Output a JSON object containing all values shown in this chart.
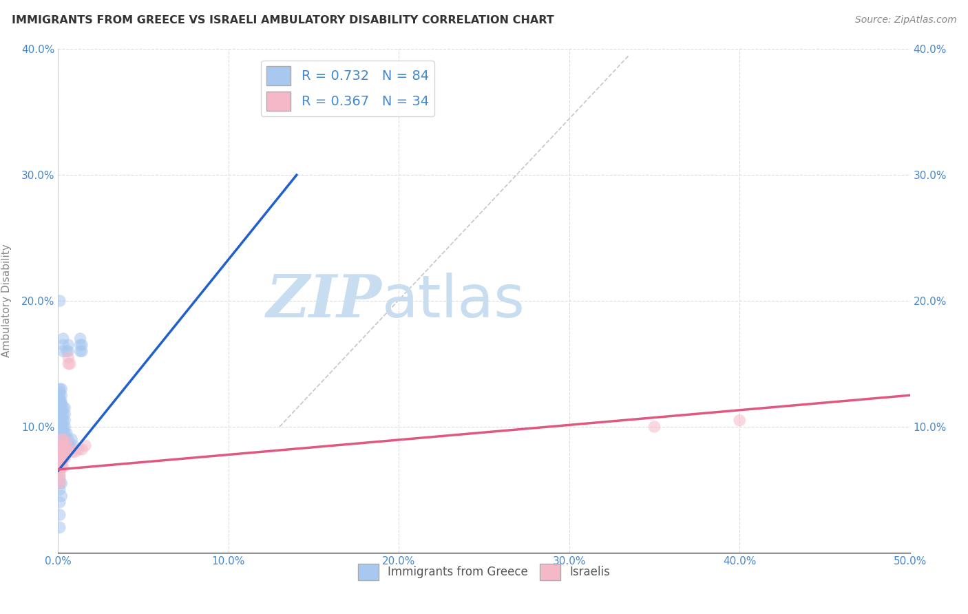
{
  "title": "IMMIGRANTS FROM GREECE VS ISRAELI AMBULATORY DISABILITY CORRELATION CHART",
  "source": "Source: ZipAtlas.com",
  "ylabel": "Ambulatory Disability",
  "xlim": [
    0,
    0.5
  ],
  "ylim": [
    0,
    0.4
  ],
  "xticks": [
    0.0,
    0.1,
    0.2,
    0.3,
    0.4,
    0.5
  ],
  "yticks": [
    0.0,
    0.1,
    0.2,
    0.3,
    0.4
  ],
  "xticklabels": [
    "0.0%",
    "10.0%",
    "20.0%",
    "30.0%",
    "40.0%",
    "50.0%"
  ],
  "yticklabels": [
    "",
    "10.0%",
    "20.0%",
    "30.0%",
    "40.0%"
  ],
  "background_color": "#ffffff",
  "grid_color": "#d8d8d8",
  "legend_R1": "R = 0.732",
  "legend_N1": "N = 84",
  "legend_R2": "R = 0.367",
  "legend_N2": "N = 34",
  "series1_color": "#a8c8f0",
  "series2_color": "#f5b8c8",
  "line1_color": "#2060cc",
  "line2_color": "#e05880",
  "watermark_zip": "ZIP",
  "watermark_atlas": "atlas",
  "watermark_color_zip": "#c8ddf0",
  "watermark_color_atlas": "#c8ddf0",
  "title_color": "#333333",
  "axis_label_color": "#4488cc",
  "series1_label": "Immigrants from Greece",
  "series2_label": "Israelis",
  "blue_dots": [
    [
      0.001,
      0.078
    ],
    [
      0.001,
      0.082
    ],
    [
      0.001,
      0.088
    ],
    [
      0.001,
      0.09
    ],
    [
      0.001,
      0.092
    ],
    [
      0.001,
      0.095
    ],
    [
      0.001,
      0.097
    ],
    [
      0.001,
      0.099
    ],
    [
      0.001,
      0.1
    ],
    [
      0.001,
      0.102
    ],
    [
      0.001,
      0.103
    ],
    [
      0.001,
      0.105
    ],
    [
      0.001,
      0.107
    ],
    [
      0.001,
      0.108
    ],
    [
      0.001,
      0.11
    ],
    [
      0.001,
      0.112
    ],
    [
      0.001,
      0.115
    ],
    [
      0.001,
      0.118
    ],
    [
      0.001,
      0.12
    ],
    [
      0.001,
      0.122
    ],
    [
      0.001,
      0.125
    ],
    [
      0.001,
      0.128
    ],
    [
      0.001,
      0.13
    ],
    [
      0.001,
      0.05
    ],
    [
      0.002,
      0.075
    ],
    [
      0.002,
      0.08
    ],
    [
      0.002,
      0.085
    ],
    [
      0.002,
      0.09
    ],
    [
      0.002,
      0.092
    ],
    [
      0.002,
      0.095
    ],
    [
      0.002,
      0.098
    ],
    [
      0.002,
      0.1
    ],
    [
      0.002,
      0.105
    ],
    [
      0.002,
      0.108
    ],
    [
      0.002,
      0.112
    ],
    [
      0.002,
      0.115
    ],
    [
      0.002,
      0.118
    ],
    [
      0.002,
      0.12
    ],
    [
      0.002,
      0.125
    ],
    [
      0.002,
      0.13
    ],
    [
      0.003,
      0.075
    ],
    [
      0.003,
      0.08
    ],
    [
      0.003,
      0.085
    ],
    [
      0.003,
      0.09
    ],
    [
      0.003,
      0.095
    ],
    [
      0.003,
      0.1
    ],
    [
      0.003,
      0.105
    ],
    [
      0.003,
      0.11
    ],
    [
      0.003,
      0.115
    ],
    [
      0.003,
      0.16
    ],
    [
      0.003,
      0.165
    ],
    [
      0.003,
      0.17
    ],
    [
      0.004,
      0.08
    ],
    [
      0.004,
      0.085
    ],
    [
      0.004,
      0.09
    ],
    [
      0.004,
      0.095
    ],
    [
      0.004,
      0.1
    ],
    [
      0.004,
      0.105
    ],
    [
      0.004,
      0.11
    ],
    [
      0.004,
      0.115
    ],
    [
      0.005,
      0.085
    ],
    [
      0.005,
      0.09
    ],
    [
      0.005,
      0.095
    ],
    [
      0.005,
      0.16
    ],
    [
      0.006,
      0.085
    ],
    [
      0.006,
      0.09
    ],
    [
      0.006,
      0.16
    ],
    [
      0.006,
      0.165
    ],
    [
      0.007,
      0.085
    ],
    [
      0.008,
      0.09
    ],
    [
      0.009,
      0.085
    ],
    [
      0.013,
      0.16
    ],
    [
      0.013,
      0.165
    ],
    [
      0.013,
      0.17
    ],
    [
      0.014,
      0.16
    ],
    [
      0.014,
      0.165
    ],
    [
      0.001,
      0.06
    ],
    [
      0.001,
      0.055
    ],
    [
      0.001,
      0.04
    ],
    [
      0.002,
      0.055
    ],
    [
      0.002,
      0.045
    ],
    [
      0.001,
      0.2
    ],
    [
      0.001,
      0.03
    ],
    [
      0.001,
      0.02
    ]
  ],
  "pink_dots": [
    [
      0.001,
      0.055
    ],
    [
      0.001,
      0.058
    ],
    [
      0.001,
      0.062
    ],
    [
      0.001,
      0.065
    ],
    [
      0.001,
      0.068
    ],
    [
      0.001,
      0.072
    ],
    [
      0.001,
      0.075
    ],
    [
      0.001,
      0.078
    ],
    [
      0.001,
      0.08
    ],
    [
      0.002,
      0.068
    ],
    [
      0.002,
      0.072
    ],
    [
      0.002,
      0.078
    ],
    [
      0.002,
      0.085
    ],
    [
      0.002,
      0.09
    ],
    [
      0.003,
      0.068
    ],
    [
      0.003,
      0.075
    ],
    [
      0.003,
      0.08
    ],
    [
      0.003,
      0.085
    ],
    [
      0.003,
      0.09
    ],
    [
      0.004,
      0.075
    ],
    [
      0.004,
      0.08
    ],
    [
      0.004,
      0.085
    ],
    [
      0.005,
      0.082
    ],
    [
      0.005,
      0.088
    ],
    [
      0.006,
      0.15
    ],
    [
      0.006,
      0.155
    ],
    [
      0.007,
      0.15
    ],
    [
      0.008,
      0.08
    ],
    [
      0.01,
      0.08
    ],
    [
      0.012,
      0.082
    ],
    [
      0.014,
      0.082
    ],
    [
      0.016,
      0.085
    ],
    [
      0.35,
      0.1
    ],
    [
      0.4,
      0.105
    ]
  ],
  "blue_line": [
    [
      0.0,
      0.065
    ],
    [
      0.14,
      0.3
    ]
  ],
  "pink_line": [
    [
      0.0,
      0.066
    ],
    [
      0.5,
      0.125
    ]
  ],
  "dashed_line": [
    [
      0.13,
      0.1
    ],
    [
      0.335,
      0.395
    ]
  ]
}
